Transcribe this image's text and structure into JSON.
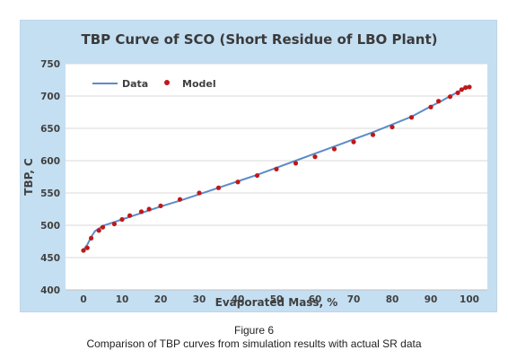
{
  "caption": {
    "figure_label": "Figure 6",
    "text": "Comparison of TBP curves from simulation results with actual SR data"
  },
  "colors": {
    "panel_bg": "#c5dff2",
    "plot_bg": "#ffffff",
    "line": "#5b8cc8",
    "marker": "#c0181a",
    "grid": "#d9d9d9"
  },
  "chart_data": {
    "type": "line",
    "title": "TBP Curve of SCO (Short Residue of LBO Plant)",
    "xlabel": "Evaporated Mass, %",
    "ylabel": "TBP, C",
    "xlim": [
      0,
      100
    ],
    "ylim": [
      400,
      750
    ],
    "xticks": [
      0,
      10,
      20,
      30,
      40,
      50,
      60,
      70,
      80,
      90,
      100
    ],
    "yticks": [
      400,
      450,
      500,
      550,
      600,
      650,
      700,
      750
    ],
    "grid": "horizontal",
    "legend_position": "top-left",
    "series": [
      {
        "name": "Data",
        "kind": "line",
        "x": [
          0,
          1,
          2,
          3,
          5,
          7,
          10,
          13,
          15,
          17,
          20,
          25,
          30,
          35,
          40,
          45,
          50,
          55,
          60,
          65,
          70,
          75,
          80,
          85,
          90,
          93,
          95,
          97,
          98,
          99,
          100
        ],
        "y": [
          462,
          470,
          482,
          491,
          499,
          503,
          509,
          515,
          519,
          523,
          529,
          538,
          548,
          558,
          568,
          578,
          589,
          600,
          611,
          622,
          633,
          644,
          656,
          668,
          684,
          693,
          700,
          706,
          710,
          713,
          716
        ]
      },
      {
        "name": "Model",
        "kind": "markers",
        "x": [
          0,
          1,
          2,
          4,
          5,
          8,
          10,
          12,
          15,
          17,
          20,
          25,
          30,
          35,
          40,
          45,
          50,
          55,
          60,
          65,
          70,
          75,
          80,
          85,
          90,
          92,
          95,
          97,
          98,
          99,
          100
        ],
        "y": [
          461,
          465,
          480,
          492,
          497,
          502,
          509,
          515,
          521,
          525,
          530,
          540,
          550,
          558,
          567,
          577,
          587,
          596,
          606,
          618,
          629,
          640,
          652,
          667,
          683,
          692,
          699,
          705,
          710,
          713,
          714
        ]
      }
    ]
  }
}
